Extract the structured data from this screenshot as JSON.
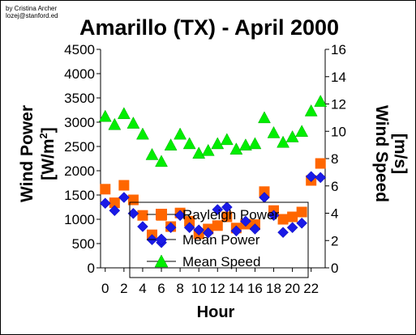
{
  "credit": {
    "line1": "by Cristina Archer",
    "line2": "lozej@stanford.ed"
  },
  "chart_data": {
    "type": "scatter",
    "title": "Amarillo (TX) - April 2000",
    "xlabel": "Hour",
    "ylabel_left": "Wind Power [W/m2]",
    "ylabel_left_main": "Wind Power",
    "ylabel_left_unit_prefix": "[W/m",
    "ylabel_left_unit_sup": "2",
    "ylabel_left_unit_suffix": "]",
    "ylabel_right": "Wind Speed [m/s]",
    "ylabel_right_main": "Wind Speed",
    "ylabel_right_unit": "[m/s]",
    "xlim": [
      -0.5,
      23.5
    ],
    "ylim_left": [
      0,
      4500
    ],
    "ylim_right": [
      0,
      16
    ],
    "x_ticks": [
      0,
      2,
      4,
      6,
      8,
      10,
      12,
      14,
      16,
      18,
      20,
      22
    ],
    "y_left_ticks": [
      0,
      500,
      1000,
      1500,
      2000,
      2500,
      3000,
      3500,
      4000,
      4500
    ],
    "y_right_ticks": [
      0,
      2,
      4,
      6,
      8,
      10,
      12,
      14,
      16
    ],
    "grid": false,
    "legend_position": "inside bottom-center",
    "colors": {
      "rayleigh": "#ff6600",
      "mean_power": "#1a1ae6",
      "mean_speed": "#00ee00",
      "outline": "#000000"
    },
    "x": [
      0,
      1,
      2,
      3,
      4,
      5,
      6,
      7,
      8,
      9,
      10,
      11,
      12,
      13,
      14,
      15,
      16,
      17,
      18,
      19,
      20,
      21,
      22,
      23
    ],
    "series": [
      {
        "name": "Rayleigh Power",
        "axis": "left",
        "marker": "square",
        "values": [
          1620,
          1340,
          1700,
          1400,
          1080,
          680,
          1080,
          850,
          1130,
          960,
          700,
          800,
          870,
          1050,
          820,
          900,
          890,
          1570,
          1180,
          1000,
          1050,
          1150,
          1800,
          2150
        ]
      },
      {
        "name": "Mean Power",
        "axis": "left",
        "marker": "diamond",
        "values": [
          1330,
          1180,
          1450,
          1120,
          850,
          580,
          520,
          830,
          1080,
          830,
          780,
          720,
          1200,
          1250,
          760,
          960,
          800,
          1450,
          1080,
          730,
          830,
          920,
          1880,
          1860
        ]
      },
      {
        "name": "Mean Speed",
        "axis": "right",
        "marker": "triangle",
        "values": [
          11.1,
          10.5,
          11.3,
          10.6,
          9.8,
          8.3,
          7.8,
          9.0,
          9.8,
          9.1,
          8.4,
          8.6,
          9.1,
          9.4,
          8.7,
          9.0,
          9.1,
          11.0,
          9.9,
          9.2,
          9.6,
          10.0,
          11.5,
          12.2
        ]
      }
    ]
  }
}
